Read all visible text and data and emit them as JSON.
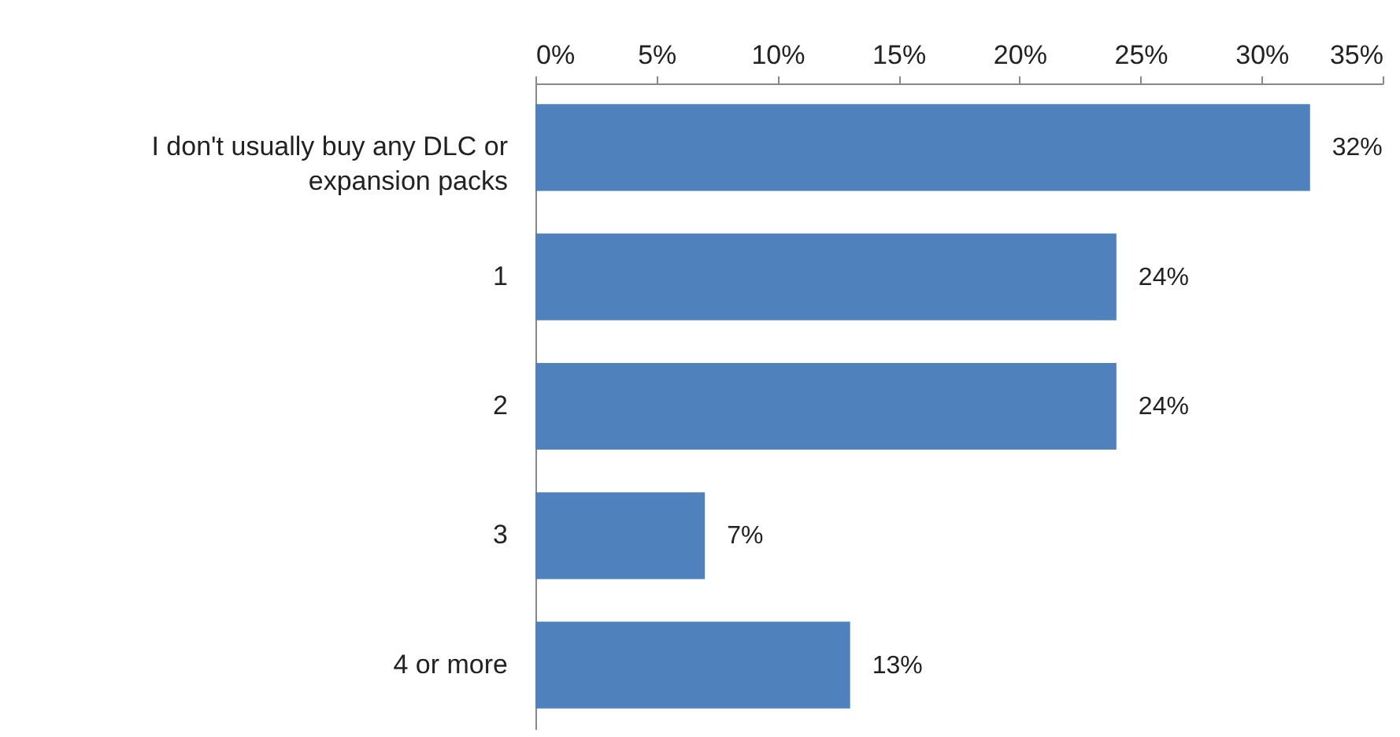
{
  "chart_data": {
    "type": "bar",
    "orientation": "horizontal",
    "categories": [
      "I don't usually buy any DLC or expansion packs",
      "1",
      "2",
      "3",
      "4 or more"
    ],
    "values": [
      32,
      24,
      24,
      7,
      13
    ],
    "value_labels": [
      "32%",
      "24%",
      "24%",
      "7%",
      "13%"
    ],
    "color": "#4f81bd",
    "xlim": [
      0,
      35
    ],
    "xticks": [
      {
        "value": 0,
        "label": "0%"
      },
      {
        "value": 5,
        "label": "5%"
      },
      {
        "value": 10,
        "label": "10%"
      },
      {
        "value": 15,
        "label": "15%"
      },
      {
        "value": 20,
        "label": "20%"
      },
      {
        "value": 25,
        "label": "25%"
      },
      {
        "value": 30,
        "label": "30%"
      },
      {
        "value": 35,
        "label": "35%"
      }
    ],
    "grid": false
  }
}
